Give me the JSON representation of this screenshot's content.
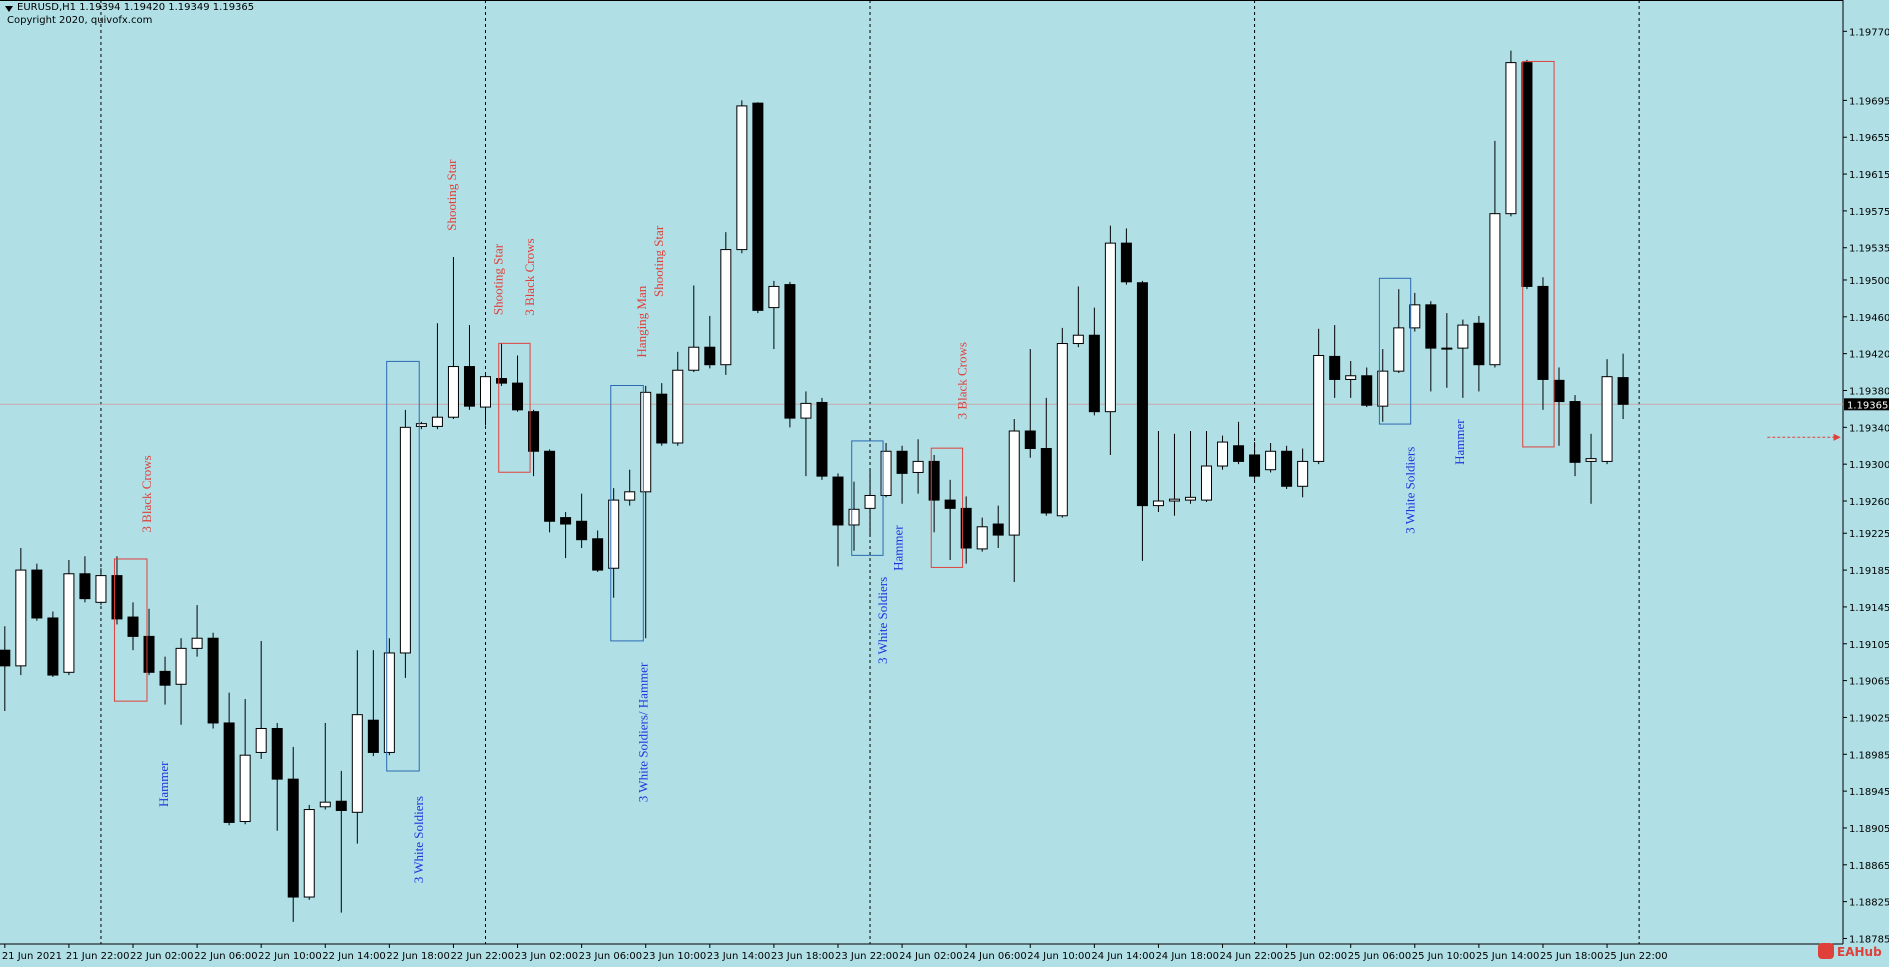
{
  "chart_data": {
    "type": "candlestick",
    "header": "EURUSD,H1  1.19394 1.19420 1.19349 1.19365",
    "copyright": "Copyright 2020, quivofx.com",
    "watermark": "EAHub",
    "bull_color": "#ffffff",
    "bear_color": "#000000",
    "background": "#b0e0e6",
    "categories": [
      "21 Jun 2021",
      null,
      null,
      null,
      "21 Jun 22:00",
      null,
      null,
      null,
      "22 Jun 02:00",
      null,
      null,
      null,
      "22 Jun 06:00",
      null,
      null,
      null,
      "22 Jun 10:00",
      null,
      null,
      null,
      "22 Jun 14:00",
      null,
      null,
      null,
      "22 Jun 18:00",
      null,
      null,
      null,
      "22 Jun 22:00",
      null,
      null,
      null,
      "23 Jun 02:00",
      null,
      null,
      null,
      "23 Jun 06:00",
      null,
      null,
      null,
      "23 Jun 10:00",
      null,
      null,
      null,
      "23 Jun 14:00",
      null,
      null,
      null,
      "23 Jun 18:00",
      null,
      null,
      null,
      "23 Jun 22:00",
      null,
      null,
      null,
      "24 Jun 02:00",
      null,
      null,
      null,
      "24 Jun 06:00",
      null,
      null,
      null,
      "24 Jun 10:00",
      null,
      null,
      null,
      "24 Jun 14:00",
      null,
      null,
      null,
      "24 Jun 18:00",
      null,
      null,
      null,
      "24 Jun 22:00",
      null,
      null,
      null,
      "25 Jun 02:00",
      null,
      null,
      null,
      "25 Jun 06:00",
      null,
      null,
      null,
      "25 Jun 10:00",
      null,
      null,
      null,
      "25 Jun 14:00",
      null,
      null,
      null,
      "25 Jun 18:00",
      null,
      null,
      null,
      "25 Jun 22:00",
      null
    ],
    "open": [
      1.19098,
      1.19081,
      1.19185,
      1.19133,
      1.19074,
      1.19181,
      1.1915,
      1.19179,
      1.19134,
      1.19113,
      1.19075,
      1.19061,
      1.191,
      1.19111,
      1.19019,
      1.18912,
      1.18987,
      1.19013,
      1.18958,
      1.1883,
      1.18928,
      1.18934,
      1.18922,
      1.19022,
      1.18987,
      1.19095,
      1.19341,
      1.19341,
      1.19351,
      1.19406,
      1.19362,
      1.19393,
      1.19388,
      1.19357,
      1.19314,
      1.19242,
      1.19238,
      1.19219,
      1.19187,
      1.19261,
      1.1927,
      1.19376,
      1.19323,
      1.19402,
      1.19427,
      1.19408,
      1.19533,
      1.19692,
      1.1947,
      1.19495,
      1.1935,
      1.19367,
      1.19286,
      1.19234,
      1.19252,
      1.19266,
      1.19314,
      1.19291,
      1.19303,
      1.19261,
      1.19252,
      1.19208,
      1.19235,
      1.19223,
      1.19336,
      1.19317,
      1.19244,
      1.19431,
      1.1944,
      1.19357,
      1.1954,
      1.19497,
      1.19255,
      1.1926,
      1.19261,
      1.19261,
      1.19298,
      1.1932,
      1.1931,
      1.19294,
      1.19314,
      1.19276,
      1.19303,
      1.19417,
      1.19392,
      1.19396,
      1.19363,
      1.19401,
      1.19448,
      1.19473,
      1.19426,
      1.19426,
      1.19453,
      1.19408,
      1.19572,
      1.19736,
      1.19493,
      1.19391,
      1.19368,
      1.19303,
      1.19303,
      1.19394
    ],
    "high": [
      1.19124,
      1.19209,
      1.19192,
      1.1914,
      1.19196,
      1.192,
      1.19187,
      1.192,
      1.1915,
      1.19143,
      1.19091,
      1.19111,
      1.19147,
      1.19117,
      1.19052,
      1.19045,
      1.19108,
      1.19019,
      1.18993,
      1.1893,
      1.19019,
      1.18967,
      1.19098,
      1.19098,
      1.19111,
      1.19359,
      1.19346,
      1.19453,
      1.19525,
      1.19451,
      1.19398,
      1.19431,
      1.19418,
      1.19359,
      1.19316,
      1.19248,
      1.19268,
      1.19228,
      1.19274,
      1.19294,
      1.19385,
      1.19388,
      1.19422,
      1.19494,
      1.19461,
      1.19552,
      1.19695,
      1.19693,
      1.19499,
      1.19498,
      1.19379,
      1.19372,
      1.1929,
      1.19281,
      1.19294,
      1.19323,
      1.1932,
      1.19327,
      1.1931,
      1.19283,
      1.19265,
      1.19242,
      1.19255,
      1.19349,
      1.19425,
      1.19372,
      1.19448,
      1.19493,
      1.1947,
      1.19559,
      1.19556,
      1.19499,
      1.19336,
      1.19333,
      1.19336,
      1.19336,
      1.19331,
      1.19346,
      1.19324,
      1.19323,
      1.1932,
      1.19317,
      1.19447,
      1.19451,
      1.19412,
      1.19405,
      1.19425,
      1.1949,
      1.19486,
      1.19477,
      1.19464,
      1.19457,
      1.19461,
      1.19651,
      1.19749,
      1.19739,
      1.19503,
      1.19405,
      1.19375,
      1.19333,
      1.19414,
      1.1942
    ],
    "low": [
      1.19032,
      1.19071,
      1.1913,
      1.19069,
      1.19071,
      1.1915,
      1.19147,
      1.19126,
      1.19098,
      1.19071,
      1.19039,
      1.19017,
      1.19091,
      1.19013,
      1.18908,
      1.18909,
      1.1898,
      1.18902,
      1.18803,
      1.18827,
      1.18925,
      1.18813,
      1.18888,
      1.18983,
      1.18984,
      1.19068,
      1.19338,
      1.19338,
      1.19349,
      1.19359,
      1.19342,
      1.19385,
      1.19357,
      1.19287,
      1.19226,
      1.19198,
      1.19209,
      1.19183,
      1.19155,
      1.19255,
      1.19111,
      1.1932,
      1.1932,
      1.194,
      1.19404,
      1.19397,
      1.19529,
      1.19464,
      1.19425,
      1.1934,
      1.19287,
      1.19283,
      1.19189,
      1.19206,
      1.19222,
      1.19264,
      1.19257,
      1.19268,
      1.19226,
      1.19196,
      1.19192,
      1.19205,
      1.19209,
      1.19172,
      1.19307,
      1.19244,
      1.19242,
      1.19427,
      1.19353,
      1.1931,
      1.19495,
      1.19195,
      1.19248,
      1.19244,
      1.19257,
      1.19259,
      1.19294,
      1.193,
      1.19283,
      1.19291,
      1.19273,
      1.19264,
      1.193,
      1.19372,
      1.19372,
      1.19362,
      1.19346,
      1.19399,
      1.19444,
      1.19379,
      1.19383,
      1.19372,
      1.19379,
      1.19405,
      1.19569,
      1.1949,
      1.19359,
      1.1932,
      1.19287,
      1.19257,
      1.193,
      1.19349
    ],
    "close": [
      1.19081,
      1.19185,
      1.19133,
      1.19071,
      1.19181,
      1.19154,
      1.19179,
      1.19132,
      1.19113,
      1.19074,
      1.1906,
      1.191,
      1.19111,
      1.19019,
      1.18911,
      1.18984,
      1.19013,
      1.18958,
      1.1883,
      1.18925,
      1.18933,
      1.18924,
      1.19028,
      1.18987,
      1.19095,
      1.1934,
      1.19344,
      1.19351,
      1.19406,
      1.19363,
      1.19395,
      1.19388,
      1.19359,
      1.19314,
      1.19238,
      1.19235,
      1.19218,
      1.19185,
      1.19261,
      1.1927,
      1.19378,
      1.19323,
      1.19402,
      1.19427,
      1.19408,
      1.19533,
      1.19689,
      1.19467,
      1.19493,
      1.1935,
      1.19366,
      1.19287,
      1.19234,
      1.19251,
      1.19266,
      1.19314,
      1.1929,
      1.19303,
      1.19261,
      1.19252,
      1.19209,
      1.19232,
      1.19223,
      1.19336,
      1.19317,
      1.19247,
      1.19431,
      1.1944,
      1.19357,
      1.1954,
      1.19498,
      1.19255,
      1.1926,
      1.19262,
      1.19264,
      1.19298,
      1.19324,
      1.19303,
      1.19287,
      1.19314,
      1.19276,
      1.19303,
      1.19418,
      1.19392,
      1.19396,
      1.19364,
      1.19401,
      1.19448,
      1.19473,
      1.19426,
      1.19425,
      1.19451,
      1.19408,
      1.19572,
      1.19736,
      1.19493,
      1.19392,
      1.19368,
      1.19302,
      1.19306,
      1.19395,
      1.19365
    ],
    "ylim": [
      1.18779,
      1.19804
    ],
    "yticks": [
      {
        "value": 1.1977,
        "label": "1.19770"
      },
      1.19695,
      1.19655,
      1.19615,
      1.19575,
      1.19535,
      {
        "value": 1.195,
        "label": "1.19500"
      },
      {
        "value": 1.1946,
        "label": "1.19460"
      },
      {
        "value": 1.1942,
        "label": "1.19420"
      },
      {
        "value": 1.1938,
        "label": "1.19380"
      },
      {
        "value": 1.1934,
        "label": "1.19340"
      },
      {
        "value": 1.193,
        "label": "1.19300"
      },
      {
        "value": 1.1926,
        "label": "1.19260"
      },
      1.19225,
      1.19185,
      1.19145,
      1.19105,
      1.19065,
      1.19025,
      1.18985,
      1.18945,
      1.18905,
      1.18865,
      1.18825,
      1.18785
    ],
    "annotations": [
      {
        "text": "3 Black Crows",
        "color": "#e0403a"
      },
      {
        "text": "Hammer",
        "color": "#2233dd"
      },
      {
        "text": "3 White Soldiers",
        "color": "#2233dd"
      },
      {
        "text": "Shooting Star",
        "color": "#e0403a"
      },
      {
        "text": "Shooting Star",
        "color": "#e0403a"
      },
      {
        "text": "3 Black Crows",
        "color": "#e0403a"
      },
      {
        "text": "Hanging Man",
        "color": "#e0403a"
      },
      {
        "text": "Shooting Star",
        "color": "#e0403a"
      },
      {
        "text": "3 White Soldiers/ Hammer",
        "color": "#2233dd"
      },
      {
        "text": "3 White Soldiers",
        "color": "#2233dd"
      },
      {
        "text": "Hammer",
        "color": "#2233dd"
      },
      {
        "text": "3 Black Crows",
        "color": "#e0403a"
      },
      {
        "text": "3 White Soldiers",
        "color": "#2233dd"
      },
      {
        "text": "Hammer",
        "color": "#2233dd"
      }
    ]
  }
}
